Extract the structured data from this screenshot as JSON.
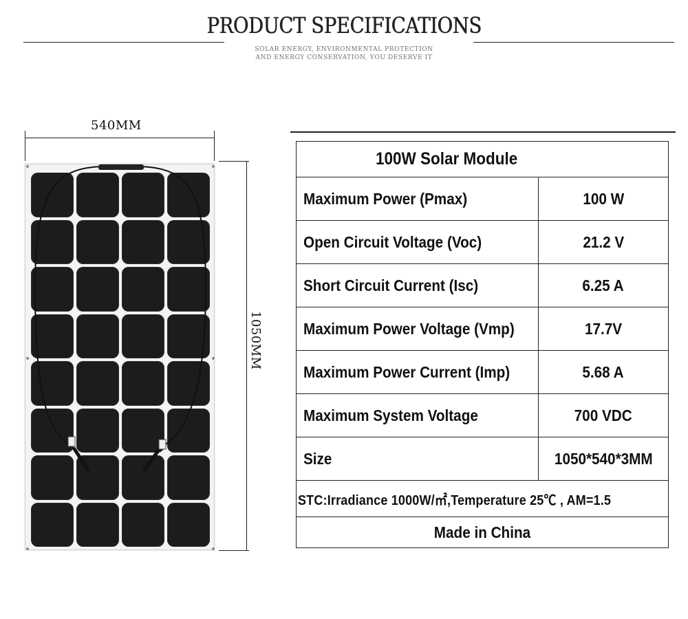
{
  "header": {
    "title": "PRODUCT SPECIFICATIONS",
    "subtitle_line1": "SOLAR ENERGY, ENVIRONMENTAL PROTECTION",
    "subtitle_line2": "AND ENERGY CONSERVATION, YOU DESERVE IT"
  },
  "figure": {
    "width_label": "540MM",
    "height_label": "1050MM",
    "cell_color": "#1c1c1e",
    "frame_color": "#f3f3f3",
    "grid_columns": 4,
    "grid_rows": 8
  },
  "spec_table": {
    "title": "100W Solar Module",
    "rows": [
      {
        "label": "Maximum Power (Pmax)",
        "value": "100 W"
      },
      {
        "label": "Open Circuit Voltage (Voc)",
        "value": "21.2 V"
      },
      {
        "label": "Short Circuit Current (Isc)",
        "value": "6.25 A"
      },
      {
        "label": "Maximum Power Voltage (Vmp)",
        "value": "17.7V"
      },
      {
        "label": "Maximum Power Current (Imp)",
        "value": "5.68 A"
      },
      {
        "label": "Maximum System Voltage",
        "value": "700 VDC"
      },
      {
        "label": "Size",
        "value": "1050*540*3MM"
      }
    ],
    "stc_note": "STC:Irradiance 1000W/㎡,Temperature 25℃ , AM=1.5",
    "origin": "Made in China"
  }
}
